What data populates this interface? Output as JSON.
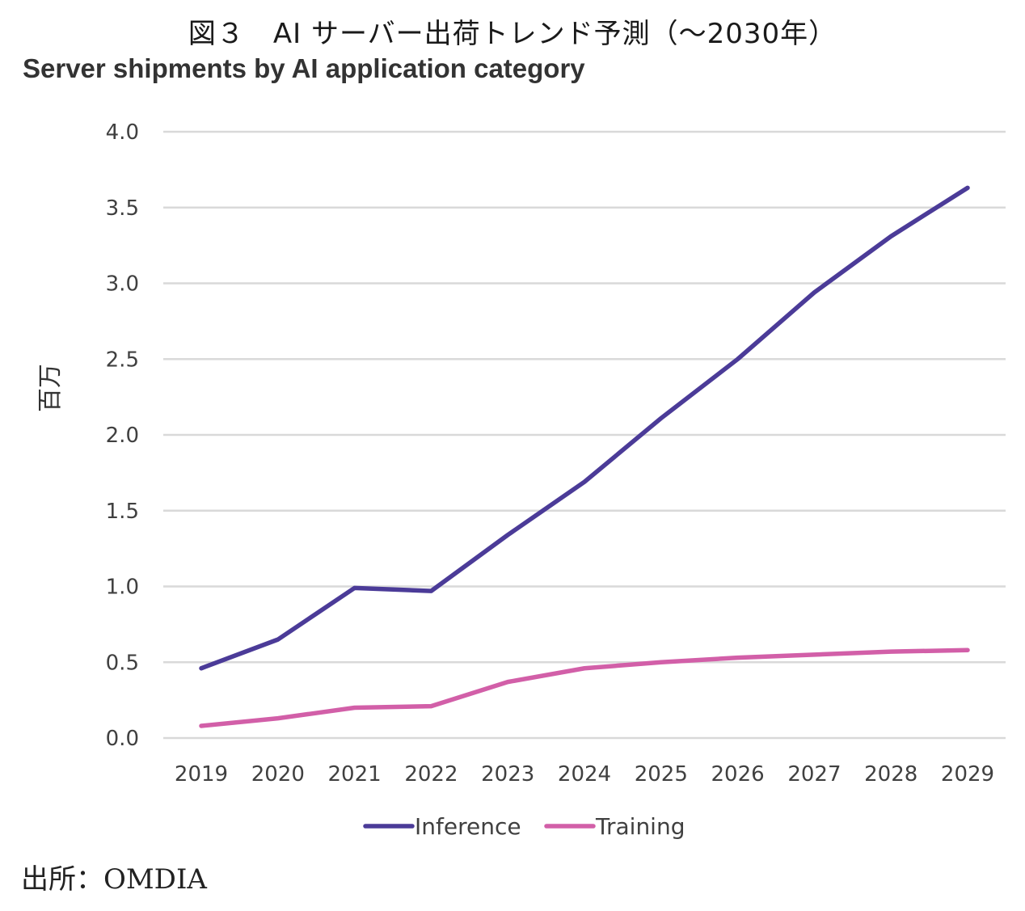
{
  "figure_title": "図３　AI サーバー出荷トレンド予測（～2030年）",
  "source": "出所：OMDIA",
  "chart_data": {
    "type": "line",
    "title": "Server shipments by AI application category",
    "xlabel": "",
    "ylabel": "百万",
    "categories": [
      "2019",
      "2020",
      "2021",
      "2022",
      "2023",
      "2024",
      "2025",
      "2026",
      "2027",
      "2028",
      "2029"
    ],
    "series": [
      {
        "name": "Inference",
        "color": "#4b3b98",
        "values": [
          0.46,
          0.65,
          0.99,
          0.97,
          1.34,
          1.69,
          2.11,
          2.5,
          2.94,
          3.31,
          3.63
        ]
      },
      {
        "name": "Training",
        "color": "#d25fa8",
        "values": [
          0.08,
          0.13,
          0.2,
          0.21,
          0.37,
          0.46,
          0.5,
          0.53,
          0.55,
          0.57,
          0.58
        ]
      }
    ],
    "ylim": [
      0,
      4.0
    ],
    "yticks": [
      "0.0",
      "0.5",
      "1.0",
      "1.5",
      "2.0",
      "2.5",
      "3.0",
      "3.5",
      "4.0"
    ],
    "grid": true,
    "legend_position": "bottom"
  }
}
